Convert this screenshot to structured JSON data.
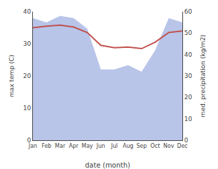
{
  "chart_data": {
    "type": "line",
    "xlabel": "date (month)",
    "ylabel": "max temp (C)",
    "y2label": "med. precipitation (kg/m2)",
    "categories": [
      "Jan",
      "Feb",
      "Mar",
      "Apr",
      "May",
      "Jun",
      "Jul",
      "Aug",
      "Sep",
      "Oct",
      "Nov",
      "Dec"
    ],
    "series": [
      {
        "type": "area",
        "color": "#b8c4e8",
        "axis": "y2",
        "values": [
          57,
          55,
          58,
          57,
          52,
          33,
          33,
          35,
          32,
          42,
          57,
          55
        ]
      },
      {
        "type": "line",
        "color": "#c0504d",
        "values": [
          35.0,
          35.5,
          35.8,
          35.2,
          33.5,
          29.5,
          28.8,
          29.0,
          28.5,
          30.5,
          33.5,
          34.0
        ]
      }
    ],
    "ylim": [
      0,
      40
    ],
    "yticks": [
      0,
      10,
      20,
      30,
      40
    ],
    "y2lim": [
      0,
      60
    ],
    "y2ticks": [
      0,
      10,
      20,
      30,
      40,
      50,
      60
    ],
    "grid": false
  }
}
